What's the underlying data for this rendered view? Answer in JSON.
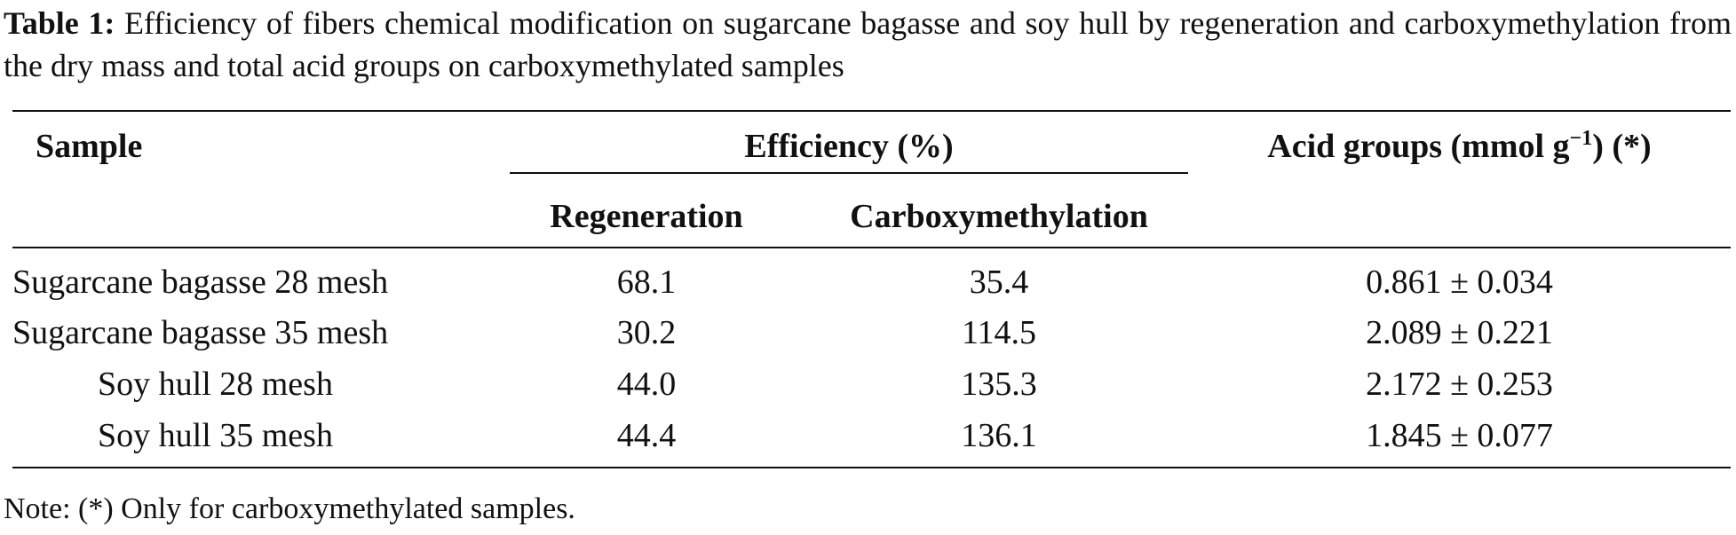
{
  "caption": {
    "label": "Table 1:",
    "text": "Efficiency of fibers chemical modification on sugarcane bagasse and soy hull by regeneration and carboxymethylation from the dry mass and total acid groups on carboxymethylated samples"
  },
  "table": {
    "headers": {
      "sample": "Sample",
      "efficiency": "Efficiency (%)",
      "regeneration": "Regeneration",
      "carboxymethylation": "Carboxymethylation",
      "acid_groups_prefix": "Acid groups (mmol g",
      "acid_groups_exp": "−1",
      "acid_groups_suffix": ") (*)"
    },
    "rows": [
      {
        "sample": "Sugarcane bagasse 28 mesh",
        "regeneration": "68.1",
        "carboxymethylation": "35.4",
        "acid_groups": "0.861 ± 0.034"
      },
      {
        "sample": "Sugarcane bagasse 35 mesh",
        "regeneration": "30.2",
        "carboxymethylation": "114.5",
        "acid_groups": "2.089 ± 0.221"
      },
      {
        "sample": "Soy hull 28 mesh",
        "regeneration": "44.0",
        "carboxymethylation": "135.3",
        "acid_groups": "2.172 ± 0.253"
      },
      {
        "sample": "Soy hull 35 mesh",
        "regeneration": "44.4",
        "carboxymethylation": "136.1",
        "acid_groups": "1.845 ± 0.077"
      }
    ]
  },
  "note": "Note: (*) Only for carboxymethylated samples."
}
